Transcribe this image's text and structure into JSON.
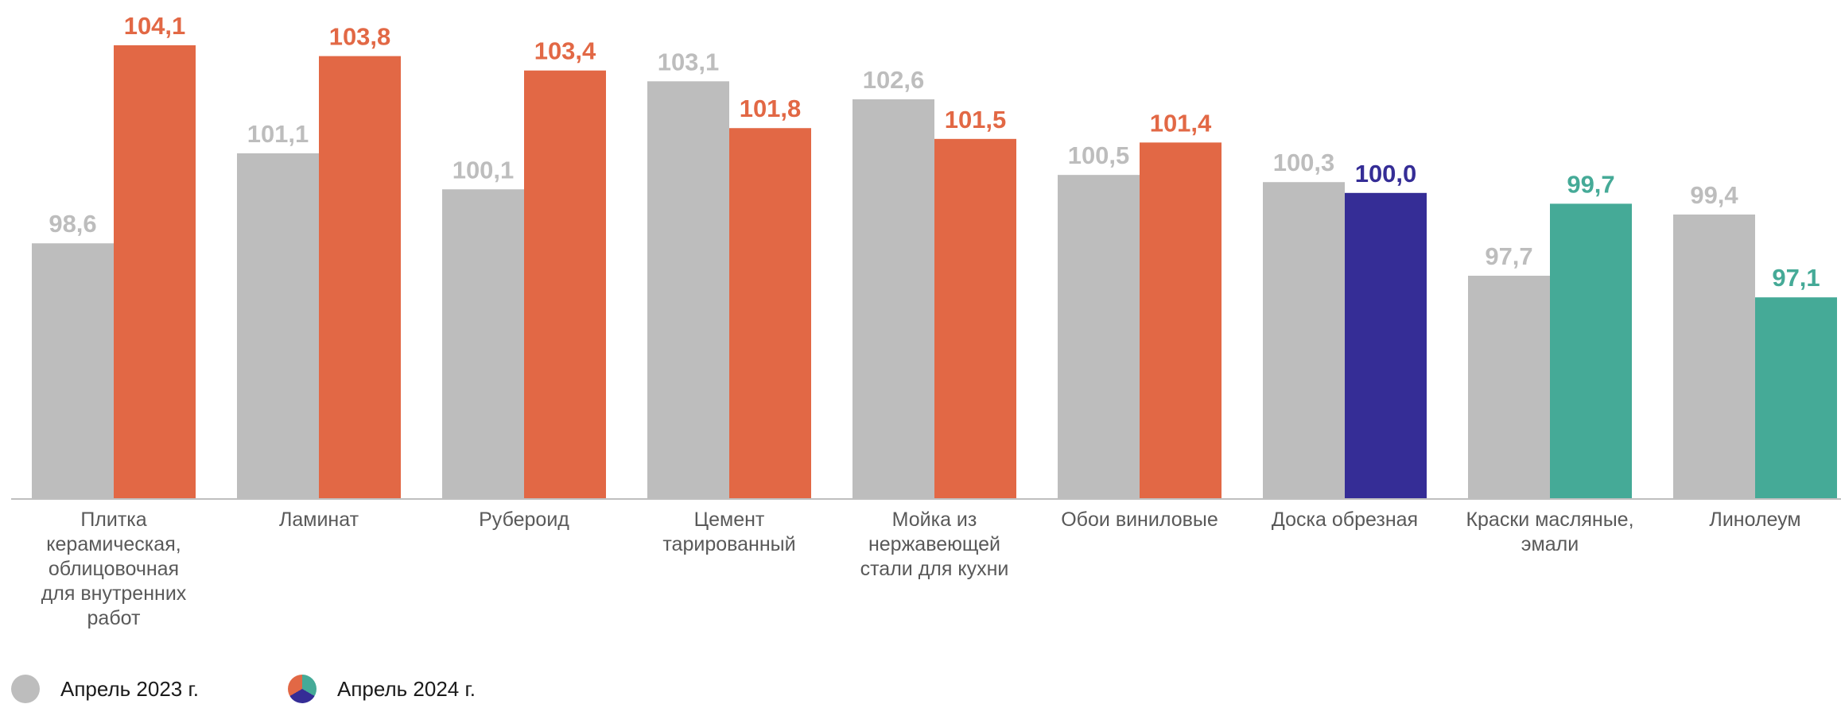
{
  "chart_data": {
    "type": "bar",
    "categories": [
      [
        "Плитка",
        "керамическая,",
        "облицовочная",
        "для внутренних",
        "работ"
      ],
      [
        "Ламинат"
      ],
      [
        "Рубероид"
      ],
      [
        "Цемент",
        "тарированный"
      ],
      [
        "Мойка из",
        "нержавеющей",
        "стали для кухни"
      ],
      [
        "Обои виниловые"
      ],
      [
        "Доска обрезная"
      ],
      [
        "Краски масляные,",
        "эмали"
      ],
      [
        "Линолеум"
      ]
    ],
    "series": [
      {
        "name": "Апрель 2023 г.",
        "values": [
          98.6,
          101.1,
          100.1,
          103.1,
          102.6,
          100.5,
          100.3,
          97.7,
          99.4
        ],
        "labels": [
          "98,6",
          "101,1",
          "100,1",
          "103,1",
          "102,6",
          "100,5",
          "100,3",
          "97,7",
          "99,4"
        ],
        "color": "#bdbdbd"
      },
      {
        "name": "Апрель 2024 г.",
        "values": [
          104.1,
          103.8,
          103.4,
          101.8,
          101.5,
          101.4,
          100.0,
          99.7,
          97.1
        ],
        "labels": [
          "104,1",
          "103,8",
          "103,4",
          "101,8",
          "101,5",
          "101,4",
          "100,0",
          "99,7",
          "97,1"
        ],
        "colors": [
          "#e26845",
          "#e26845",
          "#e26845",
          "#e26845",
          "#e26845",
          "#e26845",
          "#352d96",
          "#45aa97",
          "#45aa97"
        ]
      }
    ],
    "ylim": [
      91.5,
      105.2
    ],
    "grid": false,
    "legend_position": "bottom-left"
  },
  "legend": {
    "items": [
      {
        "label": "Апрель 2023 г.",
        "color": "#bdbdbd"
      },
      {
        "label": "Апрель 2024 г.",
        "colors": [
          "#e26845",
          "#352d96",
          "#45aa97"
        ]
      }
    ]
  }
}
